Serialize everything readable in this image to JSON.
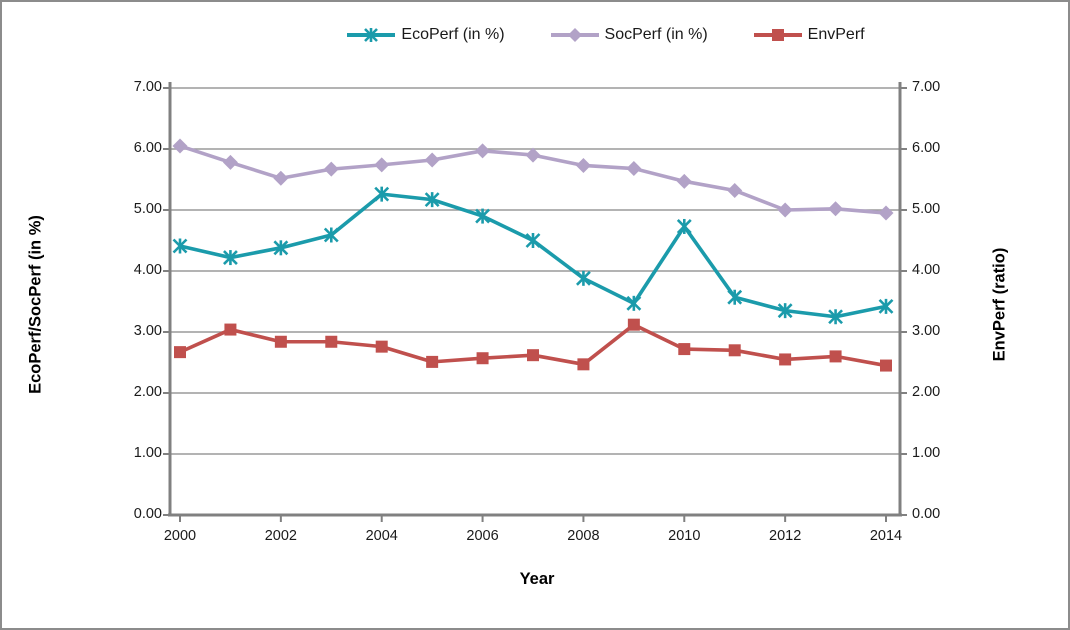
{
  "window": {
    "background": "#ffffff",
    "border_color": "#8c8c8c"
  },
  "chart_data": {
    "type": "line",
    "x": [
      2000,
      2001,
      2002,
      2003,
      2004,
      2005,
      2006,
      2007,
      2008,
      2009,
      2010,
      2011,
      2012,
      2013,
      2014
    ],
    "x_tick_labels": [
      "2000",
      "2002",
      "2004",
      "2006",
      "2008",
      "2010",
      "2012",
      "2014"
    ],
    "x_tick_years": [
      2000,
      2002,
      2004,
      2006,
      2008,
      2010,
      2012,
      2014
    ],
    "xlabel": "Year",
    "ylabel_left": "EcoPerf/SocPerf (in %)",
    "ylabel_right": "EnvPerf (ratio)",
    "ylim": [
      0,
      7
    ],
    "y_tick_labels": [
      "0.00",
      "1.00",
      "2.00",
      "3.00",
      "4.00",
      "5.00",
      "6.00",
      "7.00"
    ],
    "grid": true,
    "legend_position": "top-center",
    "series": [
      {
        "name": "EcoPerf (in %)",
        "color": "#1b9bab",
        "marker": "asterisk",
        "axis": "left",
        "values": [
          4.41,
          4.22,
          4.38,
          4.59,
          5.26,
          5.17,
          4.9,
          4.5,
          3.88,
          3.47,
          4.73,
          3.57,
          3.35,
          3.25,
          3.42
        ]
      },
      {
        "name": "SocPerf (in %)",
        "color": "#b2a2c7",
        "marker": "diamond",
        "axis": "left",
        "values": [
          6.05,
          5.78,
          5.52,
          5.67,
          5.74,
          5.82,
          5.97,
          5.9,
          5.73,
          5.68,
          5.47,
          5.32,
          5.0,
          5.02,
          4.95
        ]
      },
      {
        "name": "EnvPerf",
        "color": "#c0504d",
        "marker": "square",
        "axis": "right",
        "values": [
          2.67,
          3.04,
          2.84,
          2.84,
          2.76,
          2.51,
          2.57,
          2.62,
          2.47,
          3.12,
          2.72,
          2.7,
          2.55,
          2.6,
          2.45
        ]
      }
    ],
    "colors": {
      "gridline": "#9a9a9a",
      "axis_line": "#808080",
      "tick_text": "#1a1a1a"
    }
  }
}
